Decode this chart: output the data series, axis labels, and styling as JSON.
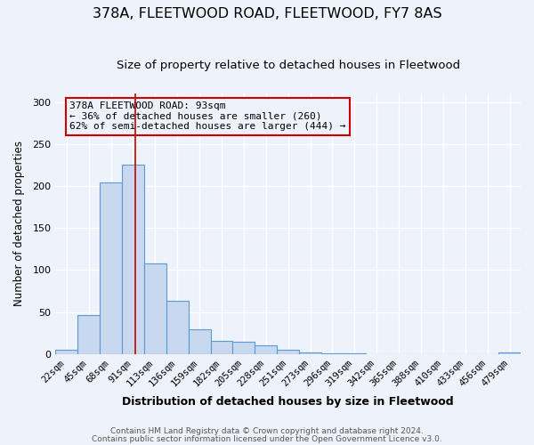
{
  "title": "378A, FLEETWOOD ROAD, FLEETWOOD, FY7 8AS",
  "subtitle": "Size of property relative to detached houses in Fleetwood",
  "xlabel": "Distribution of detached houses by size in Fleetwood",
  "ylabel": "Number of detached properties",
  "bin_labels": [
    "22sqm",
    "45sqm",
    "68sqm",
    "91sqm",
    "113sqm",
    "136sqm",
    "159sqm",
    "182sqm",
    "205sqm",
    "228sqm",
    "251sqm",
    "273sqm",
    "296sqm",
    "319sqm",
    "342sqm",
    "365sqm",
    "388sqm",
    "410sqm",
    "433sqm",
    "456sqm",
    "479sqm"
  ],
  "bin_values": [
    5,
    46,
    204,
    226,
    108,
    63,
    29,
    16,
    15,
    10,
    5,
    2,
    1,
    1,
    0,
    0,
    0,
    0,
    0,
    0,
    2
  ],
  "bar_color": "#c8d8ee",
  "bar_edge_color": "#5b9bd5",
  "annotation_line1": "378A FLEETWOOD ROAD: 93sqm",
  "annotation_line2": "← 36% of detached houses are smaller (260)",
  "annotation_line3": "62% of semi-detached houses are larger (444) →",
  "vline_color": "#cc0000",
  "annotation_box_edge_color": "#cc0000",
  "vline_x": 3.1,
  "ylim": [
    0,
    310
  ],
  "footnote1": "Contains HM Land Registry data © Crown copyright and database right 2024.",
  "footnote2": "Contains public sector information licensed under the Open Government Licence v3.0.",
  "background_color": "#eef2fb",
  "grid_color": "#ffffff",
  "title_fontsize": 11.5,
  "subtitle_fontsize": 9.5,
  "xlabel_fontsize": 9,
  "ylabel_fontsize": 8.5,
  "tick_fontsize": 7.5,
  "annotation_fontsize": 8,
  "footnote_fontsize": 6.5
}
